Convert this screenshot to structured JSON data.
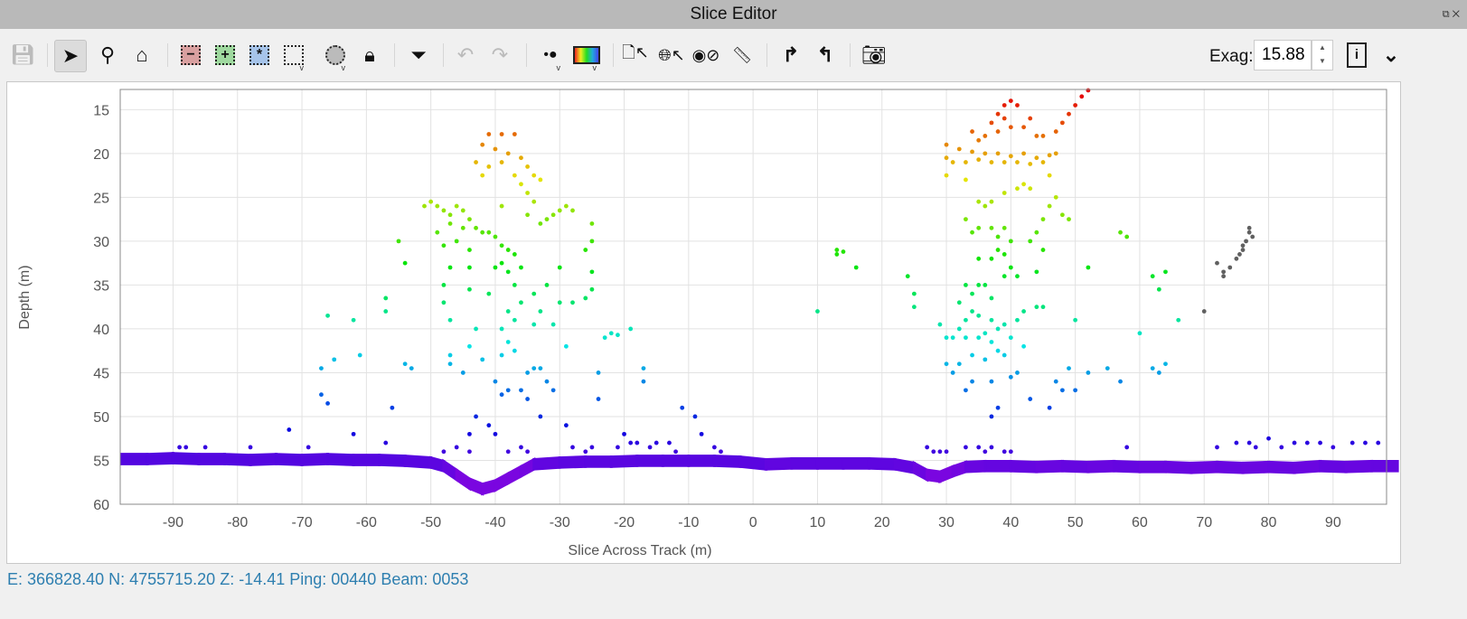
{
  "window": {
    "title": "Slice Editor",
    "restore_icon": "restore-icon",
    "close_icon": "close-icon"
  },
  "toolbar": {
    "items": [
      {
        "name": "save",
        "icon": "floppy-disk-icon",
        "enabled": false
      },
      {
        "name": "select",
        "icon": "arrow-pointer-icon",
        "active": true
      },
      {
        "name": "zoom",
        "icon": "magnifier-icon"
      },
      {
        "name": "home",
        "icon": "home-icon"
      },
      {
        "name": "remove-selection",
        "icon": "minus-box-icon",
        "color": "#d9a0a0"
      },
      {
        "name": "add-selection",
        "icon": "plus-box-icon",
        "color": "#9fd99f"
      },
      {
        "name": "toggle-selection",
        "icon": "star-box-icon",
        "color": "#a6c4ea"
      },
      {
        "name": "rectangle-select",
        "icon": "dotted-rectangle-icon"
      },
      {
        "name": "lasso-select",
        "icon": "dotted-circle-icon"
      },
      {
        "name": "lock",
        "icon": "lock-icon"
      },
      {
        "name": "filter",
        "icon": "filter-icon"
      },
      {
        "name": "undo",
        "icon": "undo-icon",
        "enabled": false
      },
      {
        "name": "redo",
        "icon": "redo-icon",
        "enabled": false
      },
      {
        "name": "point-size",
        "icon": "point-size-icon"
      },
      {
        "name": "color-map",
        "icon": "colormap-icon"
      },
      {
        "name": "info-pick",
        "icon": "document-pointer-icon"
      },
      {
        "name": "geo-pick",
        "icon": "globe-pointer-icon"
      },
      {
        "name": "compass",
        "icon": "compass-icon"
      },
      {
        "name": "measure",
        "icon": "ruler-icon"
      },
      {
        "name": "step-forward",
        "icon": "turn-right-icon"
      },
      {
        "name": "step-back",
        "icon": "turn-left-icon"
      },
      {
        "name": "snapshot",
        "icon": "camera-icon"
      }
    ],
    "exag_label": "Exag:",
    "exag_value": "15.88",
    "info_icon": "info-document-icon",
    "more_icon": "chevron-down-icon"
  },
  "status": {
    "text": "E: 366828.40 N: 4755715.20 Z: -14.41  Ping: 00440 Beam: 0053"
  },
  "chart_data": {
    "type": "scatter",
    "xlabel": "Slice Across Track (m)",
    "ylabel": "Depth (m)",
    "xlim": [
      -98.2,
      98.3
    ],
    "ylim": [
      60,
      12.7
    ],
    "y_inverted": true,
    "grid": true,
    "xticks": [
      -90,
      -80,
      -70,
      -60,
      -50,
      -40,
      -30,
      -20,
      -10,
      0,
      10,
      20,
      30,
      40,
      50,
      60,
      70,
      80,
      90
    ],
    "yticks": [
      15,
      20,
      25,
      30,
      35,
      40,
      45,
      50,
      55,
      60
    ],
    "colormap": "rainbow-by-depth",
    "flagged_color": "#606060",
    "seafloor": [
      [
        -98,
        54.8
      ],
      [
        -94,
        54.8
      ],
      [
        -90,
        54.7
      ],
      [
        -86,
        54.8
      ],
      [
        -82,
        54.8
      ],
      [
        -78,
        54.9
      ],
      [
        -74,
        54.8
      ],
      [
        -70,
        54.9
      ],
      [
        -66,
        54.8
      ],
      [
        -62,
        54.9
      ],
      [
        -58,
        54.9
      ],
      [
        -54,
        55
      ],
      [
        -50,
        55.2
      ],
      [
        -48,
        55.6
      ],
      [
        -46,
        56.6
      ],
      [
        -44,
        57.6
      ],
      [
        -42,
        58.2
      ],
      [
        -40,
        57.8
      ],
      [
        -38,
        57
      ],
      [
        -36,
        56.2
      ],
      [
        -34,
        55.4
      ],
      [
        -30,
        55.2
      ],
      [
        -26,
        55.1
      ],
      [
        -22,
        55.1
      ],
      [
        -18,
        55
      ],
      [
        -14,
        55
      ],
      [
        -10,
        55
      ],
      [
        -6,
        55
      ],
      [
        -2,
        55.1
      ],
      [
        2,
        55.4
      ],
      [
        6,
        55.3
      ],
      [
        10,
        55.3
      ],
      [
        14,
        55.3
      ],
      [
        18,
        55.3
      ],
      [
        22,
        55.4
      ],
      [
        25,
        55.8
      ],
      [
        27,
        56.6
      ],
      [
        29,
        56.8
      ],
      [
        31,
        56.2
      ],
      [
        33,
        55.7
      ],
      [
        36,
        55.6
      ],
      [
        40,
        55.6
      ],
      [
        44,
        55.7
      ],
      [
        48,
        55.6
      ],
      [
        52,
        55.7
      ],
      [
        56,
        55.6
      ],
      [
        60,
        55.7
      ],
      [
        64,
        55.7
      ],
      [
        68,
        55.8
      ],
      [
        72,
        55.7
      ],
      [
        76,
        55.8
      ],
      [
        80,
        55.7
      ],
      [
        84,
        55.8
      ],
      [
        88,
        55.6
      ],
      [
        92,
        55.7
      ],
      [
        96,
        55.6
      ]
    ],
    "soundings": [
      [
        -41,
        17.8
      ],
      [
        -39,
        17.8
      ],
      [
        -37,
        17.8
      ],
      [
        -42,
        19
      ],
      [
        -40,
        19.5
      ],
      [
        -38,
        20
      ],
      [
        -36,
        20.5
      ],
      [
        -43,
        21
      ],
      [
        -41,
        21.5
      ],
      [
        -39,
        21
      ],
      [
        -35,
        21.5
      ],
      [
        -34,
        22.5
      ],
      [
        -33,
        23
      ],
      [
        -42,
        22.5
      ],
      [
        -37,
        22.5
      ],
      [
        -36,
        23.5
      ],
      [
        -35,
        24.5
      ],
      [
        -34,
        25.5
      ],
      [
        -39,
        26
      ],
      [
        -51,
        26
      ],
      [
        -50,
        25.5
      ],
      [
        -49,
        26
      ],
      [
        -48,
        26.5
      ],
      [
        -47,
        27
      ],
      [
        -46,
        26
      ],
      [
        -45,
        26.5
      ],
      [
        -44,
        27.5
      ],
      [
        -47,
        28
      ],
      [
        -45,
        28.5
      ],
      [
        -43,
        28.5
      ],
      [
        -42,
        29
      ],
      [
        -41,
        29
      ],
      [
        -40,
        29.5
      ],
      [
        -32,
        27.5
      ],
      [
        -31,
        27
      ],
      [
        -30,
        26.5
      ],
      [
        -29,
        26
      ],
      [
        -28,
        26.5
      ],
      [
        -33,
        28
      ],
      [
        -35,
        27
      ],
      [
        -25,
        28
      ],
      [
        -25,
        30
      ],
      [
        -26,
        31
      ],
      [
        -55,
        30
      ],
      [
        -49,
        29
      ],
      [
        -48,
        30.5
      ],
      [
        -46,
        30
      ],
      [
        -44,
        31
      ],
      [
        -39,
        30.5
      ],
      [
        -38,
        31
      ],
      [
        -37,
        31.5
      ],
      [
        -39,
        32.5
      ],
      [
        -38,
        33.5
      ],
      [
        -40,
        33
      ],
      [
        -36,
        33
      ],
      [
        -37,
        35
      ],
      [
        -44,
        33
      ],
      [
        -47,
        33
      ],
      [
        -44,
        35.5
      ],
      [
        -41,
        36
      ],
      [
        -38,
        38
      ],
      [
        -37,
        39
      ],
      [
        -39,
        40
      ],
      [
        -38,
        41.5
      ],
      [
        -37,
        42.5
      ],
      [
        -39,
        43
      ],
      [
        -36,
        37
      ],
      [
        -34,
        36
      ],
      [
        -33,
        38
      ],
      [
        -32,
        35
      ],
      [
        -30,
        33
      ],
      [
        -30,
        37
      ],
      [
        -31,
        39.5
      ],
      [
        -34,
        39.5
      ],
      [
        -25,
        33.5
      ],
      [
        -25,
        35.5
      ],
      [
        -26,
        36.5
      ],
      [
        -28,
        37
      ],
      [
        -29,
        42
      ],
      [
        -23,
        41
      ],
      [
        -22,
        40.5
      ],
      [
        -21,
        40.7
      ],
      [
        -19,
        40
      ],
      [
        -17,
        44.5
      ],
      [
        -17,
        46
      ],
      [
        -11,
        49
      ],
      [
        -9,
        50
      ],
      [
        -8,
        52
      ],
      [
        -15,
        53
      ],
      [
        -12,
        54
      ],
      [
        -24,
        45
      ],
      [
        -24,
        48
      ],
      [
        -20,
        52
      ],
      [
        -19,
        53
      ],
      [
        -54,
        32.5
      ],
      [
        -57,
        36.5
      ],
      [
        -57,
        38
      ],
      [
        -66,
        38.5
      ],
      [
        -62,
        39
      ],
      [
        -61,
        43
      ],
      [
        -67,
        44.5
      ],
      [
        -65,
        43.5
      ],
      [
        -54,
        44
      ],
      [
        -53,
        44.5
      ],
      [
        -67,
        47.5
      ],
      [
        -66,
        48.5
      ],
      [
        -56,
        49
      ],
      [
        -48,
        35
      ],
      [
        -48,
        37
      ],
      [
        -47,
        39
      ],
      [
        -43,
        40
      ],
      [
        -47,
        43
      ],
      [
        -44,
        42
      ],
      [
        -42,
        43.5
      ],
      [
        -47,
        44
      ],
      [
        -45,
        45
      ],
      [
        -40,
        46
      ],
      [
        -39,
        47.5
      ],
      [
        -38,
        47
      ],
      [
        -36,
        47
      ],
      [
        -35,
        45
      ],
      [
        -34,
        44.5
      ],
      [
        -33,
        44.5
      ],
      [
        -32,
        46
      ],
      [
        -31,
        47
      ],
      [
        -35,
        48
      ],
      [
        -33,
        50
      ],
      [
        -29,
        51
      ],
      [
        -44,
        52
      ],
      [
        -43,
        50
      ],
      [
        -41,
        51
      ],
      [
        -40,
        52
      ],
      [
        -38,
        54
      ],
      [
        -72,
        51.5
      ],
      [
        -62,
        52
      ],
      [
        -69,
        53.5
      ],
      [
        -78,
        53.5
      ],
      [
        -88,
        53.5
      ],
      [
        -89,
        53.5
      ],
      [
        -85,
        53.5
      ],
      [
        -57,
        53
      ],
      [
        -46,
        53.5
      ],
      [
        -48,
        54
      ],
      [
        -44,
        54
      ],
      [
        -36,
        53.5
      ],
      [
        -35,
        54
      ],
      [
        -28,
        53.5
      ],
      [
        -26,
        54
      ],
      [
        -25,
        53.5
      ],
      [
        -21,
        53.5
      ],
      [
        -18,
        53
      ],
      [
        -16,
        53.5
      ],
      [
        -13,
        53
      ],
      [
        -6,
        53.5
      ],
      [
        -5,
        54
      ],
      [
        30,
        19
      ],
      [
        32,
        19.5
      ],
      [
        34,
        19.8
      ],
      [
        36,
        20
      ],
      [
        38,
        20
      ],
      [
        40,
        20.3
      ],
      [
        42,
        20
      ],
      [
        44,
        20.5
      ],
      [
        46,
        20.2
      ],
      [
        31,
        21
      ],
      [
        33,
        21
      ],
      [
        35,
        20.7
      ],
      [
        37,
        21
      ],
      [
        39,
        21
      ],
      [
        41,
        21
      ],
      [
        43,
        21.2
      ],
      [
        45,
        21
      ],
      [
        30,
        20.5
      ],
      [
        47,
        20
      ],
      [
        35,
        18.5
      ],
      [
        36,
        18
      ],
      [
        38,
        17.5
      ],
      [
        40,
        17
      ],
      [
        42,
        17
      ],
      [
        44,
        18
      ],
      [
        38,
        15.5
      ],
      [
        39,
        14.5
      ],
      [
        40,
        14
      ],
      [
        41,
        14.5
      ],
      [
        39,
        16
      ],
      [
        37,
        16.5
      ],
      [
        34,
        17.5
      ],
      [
        43,
        16
      ],
      [
        45,
        18
      ],
      [
        47,
        17.5
      ],
      [
        48,
        16.5
      ],
      [
        49,
        15.5
      ],
      [
        50,
        14.5
      ],
      [
        51,
        13.5
      ],
      [
        52,
        12.8
      ],
      [
        30,
        22.5
      ],
      [
        33,
        23
      ],
      [
        35,
        25.5
      ],
      [
        37,
        25.5
      ],
      [
        39,
        24.5
      ],
      [
        41,
        24
      ],
      [
        43,
        24
      ],
      [
        46,
        22.5
      ],
      [
        42,
        23.5
      ],
      [
        36,
        26
      ],
      [
        33,
        27.5
      ],
      [
        35,
        28.5
      ],
      [
        37,
        28.5
      ],
      [
        39,
        28.5
      ],
      [
        34,
        29
      ],
      [
        38,
        29.5
      ],
      [
        40,
        30
      ],
      [
        38,
        31
      ],
      [
        39,
        31.5
      ],
      [
        35,
        32
      ],
      [
        37,
        32
      ],
      [
        40,
        33
      ],
      [
        39,
        34
      ],
      [
        41,
        34
      ],
      [
        36,
        35
      ],
      [
        33,
        35
      ],
      [
        34,
        36
      ],
      [
        35,
        35
      ],
      [
        37,
        36.5
      ],
      [
        32,
        37
      ],
      [
        34,
        38
      ],
      [
        33,
        39
      ],
      [
        35,
        38.5
      ],
      [
        37,
        39
      ],
      [
        39,
        39.5
      ],
      [
        41,
        39
      ],
      [
        42,
        38
      ],
      [
        38,
        40
      ],
      [
        36,
        40.5
      ],
      [
        32,
        40
      ],
      [
        31,
        41
      ],
      [
        33,
        41
      ],
      [
        35,
        41
      ],
      [
        37,
        41.5
      ],
      [
        40,
        41
      ],
      [
        42,
        42
      ],
      [
        29,
        39.5
      ],
      [
        30,
        41
      ],
      [
        30,
        44
      ],
      [
        31,
        45
      ],
      [
        32,
        44
      ],
      [
        34,
        43
      ],
      [
        36,
        43.5
      ],
      [
        38,
        42.5
      ],
      [
        39,
        43
      ],
      [
        34,
        46
      ],
      [
        33,
        47
      ],
      [
        37,
        46
      ],
      [
        40,
        45.5
      ],
      [
        41,
        45
      ],
      [
        38,
        49
      ],
      [
        37,
        50
      ],
      [
        44,
        37.5
      ],
      [
        45,
        37.5
      ],
      [
        44,
        33.5
      ],
      [
        45,
        31
      ],
      [
        43,
        30
      ],
      [
        44,
        29
      ],
      [
        45,
        27.5
      ],
      [
        46,
        26
      ],
      [
        47,
        25
      ],
      [
        48,
        27
      ],
      [
        49,
        27.5
      ],
      [
        50,
        39
      ],
      [
        49,
        44.5
      ],
      [
        47,
        46
      ],
      [
        46,
        49
      ],
      [
        43,
        48
      ],
      [
        48,
        47
      ],
      [
        50,
        47
      ],
      [
        52,
        45
      ],
      [
        55,
        44.5
      ],
      [
        57,
        46
      ],
      [
        62,
        44.5
      ],
      [
        63,
        45
      ],
      [
        64,
        44
      ],
      [
        60,
        40.5
      ],
      [
        58,
        29.5
      ],
      [
        57,
        29
      ],
      [
        66,
        39
      ],
      [
        64,
        33.5
      ],
      [
        63,
        35.5
      ],
      [
        62,
        34
      ],
      [
        52,
        33
      ],
      [
        58,
        53.5
      ],
      [
        24,
        34
      ],
      [
        25,
        36
      ],
      [
        25,
        37.5
      ],
      [
        16,
        33
      ],
      [
        13,
        31
      ],
      [
        13,
        31.5
      ],
      [
        14,
        31.2
      ],
      [
        10,
        38
      ],
      [
        27,
        53.5
      ],
      [
        28,
        54
      ],
      [
        29,
        54
      ],
      [
        30,
        54
      ],
      [
        33,
        53.5
      ],
      [
        35,
        53.5
      ],
      [
        36,
        54
      ],
      [
        37,
        53.5
      ],
      [
        39,
        54
      ],
      [
        40,
        54
      ],
      [
        72,
        53.5
      ],
      [
        75,
        53
      ],
      [
        77,
        53
      ],
      [
        78,
        53.5
      ],
      [
        80,
        52.5
      ],
      [
        82,
        53.5
      ],
      [
        84,
        53
      ],
      [
        86,
        53
      ],
      [
        88,
        53
      ],
      [
        90,
        53.5
      ],
      [
        93,
        53
      ],
      [
        95,
        53
      ],
      [
        97,
        53
      ]
    ],
    "flagged": [
      [
        70,
        38
      ],
      [
        72,
        32.5
      ],
      [
        73,
        34
      ],
      [
        74,
        33
      ],
      [
        75,
        32
      ],
      [
        76,
        31
      ],
      [
        76.5,
        30
      ],
      [
        77,
        29
      ],
      [
        77,
        28.5
      ],
      [
        77.5,
        29.5
      ],
      [
        76,
        30.5
      ],
      [
        75.5,
        31.5
      ],
      [
        73,
        33.5
      ]
    ]
  }
}
